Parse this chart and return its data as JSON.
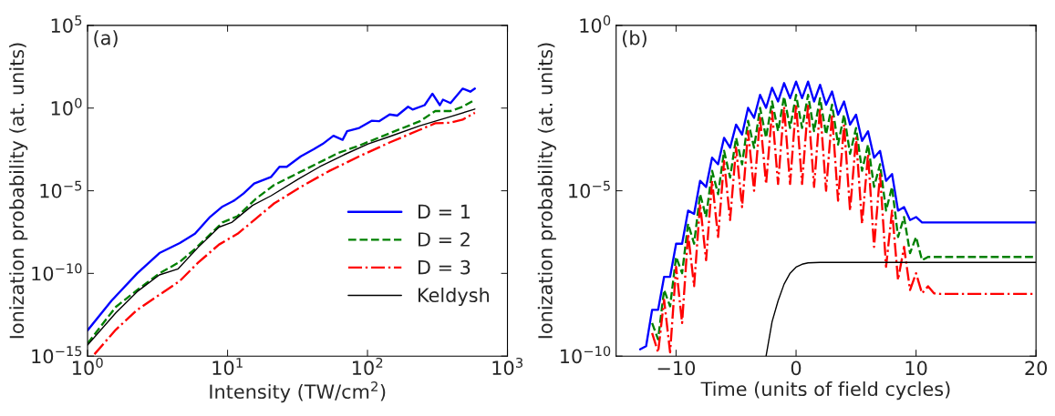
{
  "chart_data": [
    {
      "type": "line",
      "xlabel": "Intensity (TW/cm$^{2}$)",
      "ylabel": "Ionization probability (at. units)",
      "annotations": [
        "(a)"
      ],
      "log": "xy",
      "legend": "lower right",
      "grid": false,
      "xlim": [
        1,
        1000
      ],
      "xticks": [
        {
          "value": 1,
          "label": "10$^{0}$"
        },
        {
          "value": 10,
          "label": "10$^{1}$"
        },
        {
          "value": 100,
          "label": "10$^{2}$"
        },
        {
          "value": 1000,
          "label": "10$^{3}$"
        }
      ],
      "ylim": [
        1e-15,
        100000
      ],
      "yticks": [
        {
          "value": 1e-15,
          "label": "10$^{−15}$"
        },
        {
          "value": 1e-10,
          "label": "10$^{−10}$"
        },
        {
          "value": 1e-05,
          "label": "10$^{−5}$"
        },
        {
          "value": 1,
          "label": "10$^{0}$"
        },
        {
          "value": 100000,
          "label": "10$^{5}$"
        }
      ],
      "series": [
        {
          "name": "D = 1",
          "color": "#0000ff",
          "line_style": "solid",
          "x": [
            1,
            1.48,
            2.26,
            3.26,
            4.56,
            5.85,
            7.5,
            9.2,
            11.2,
            13.0,
            15.5,
            20.5,
            23.5,
            26.5,
            33.4,
            41.2,
            47.9,
            57.1,
            66.4,
            71.5,
            87.3,
            107,
            121,
            144,
            163,
            195,
            210,
            256,
            291,
            329,
            346,
            392,
            479,
            543,
            585
          ],
          "values": [
            3.6e-14,
            2.2e-12,
            1e-10,
            1.7e-09,
            6.9e-09,
            2.5e-08,
            2.6e-07,
            1.1e-06,
            2.6e-06,
            6.8e-06,
            2.7e-05,
            6.9e-05,
            0.00028,
            0.00028,
            0.0012,
            0.0032,
            0.0068,
            0.021,
            0.012,
            0.04,
            0.063,
            0.17,
            0.16,
            0.41,
            0.35,
            1.2,
            0.81,
            1.5,
            7.4,
            1.5,
            3.2,
            2.0,
            15,
            9.8,
            15
          ]
        },
        {
          "name": "D = 2",
          "color": "#008000",
          "line_style": "dashed",
          "x": [
            1,
            1.59,
            2.26,
            3.26,
            4.56,
            5.85,
            9.2,
            11.8,
            15.9,
            21.5,
            32.1,
            47.9,
            61.7,
            87.3,
            144,
            237,
            305,
            392,
            479,
            585
          ],
          "values": [
            5.8e-15,
            9.3e-13,
            9.8e-12,
            1e-10,
            5e-10,
            3e-09,
            1.2e-07,
            2.9e-07,
            3.2e-06,
            2.2e-05,
            0.00012,
            0.00065,
            0.0019,
            0.0054,
            0.03,
            0.16,
            0.66,
            0.66,
            1.2,
            3.2
          ]
        },
        {
          "name": "D = 3",
          "color": "#ff0000",
          "line_style": "dashdot",
          "x": [
            1.12,
            1.59,
            2.26,
            3.26,
            4.56,
            6.15,
            8.7,
            11.8,
            15.9,
            21.5,
            32.1,
            52.8,
            87.3,
            144,
            237,
            305,
            392,
            479,
            585
          ],
          "values": [
            1.3e-15,
            3.9e-14,
            6.2e-13,
            5.1e-12,
            3.5e-11,
            4.4e-10,
            5.6e-09,
            2.5e-08,
            2e-07,
            1.7e-06,
            1.4e-05,
            0.00015,
            0.0012,
            0.0083,
            0.049,
            0.12,
            0.13,
            0.2,
            0.52
          ]
        },
        {
          "name": "Keldysh",
          "color": "#000000",
          "line_style": "solid",
          "x": [
            1,
            1.59,
            2.26,
            3.26,
            4.44,
            6.15,
            8.7,
            10.7,
            15.1,
            20.5,
            32.1,
            45.5,
            68.0,
            101,
            144,
            237,
            392,
            585
          ],
          "values": [
            4.7e-15,
            4.1e-13,
            7.9e-12,
            8.1e-11,
            1.9e-10,
            3.7e-09,
            6.3e-08,
            1.2e-07,
            1.3e-06,
            5e-06,
            5.1e-05,
            0.00028,
            0.0015,
            0.0068,
            0.019,
            0.085,
            0.3,
            0.87
          ]
        }
      ]
    },
    {
      "type": "line",
      "xlabel": "Time (units of field cycles)",
      "ylabel": "Ionization probability (at. units)",
      "annotations": [
        "(b)"
      ],
      "log": "y",
      "grid": false,
      "xlim": [
        -15,
        20
      ],
      "xticks": [
        {
          "value": -10,
          "label": "−10"
        },
        0,
        10,
        20
      ],
      "ylim": [
        1e-10,
        1
      ],
      "yticks": [
        {
          "value": 1e-10,
          "label": "10$^{−10}$"
        },
        {
          "value": 1e-05,
          "label": "10$^{−5}$"
        },
        {
          "value": 1,
          "label": "10$^{0}$"
        }
      ],
      "series": [
        {
          "color": "#0000ff",
          "line_style": "solid",
          "x": [
            -13,
            -12.5,
            -12,
            -11.5,
            -11,
            -10.5,
            -10,
            -9.5,
            -9,
            -8.5,
            -8,
            -7.5,
            -7,
            -6.5,
            -6,
            -5.5,
            -5,
            -4.5,
            -4,
            -3.5,
            -3,
            -2.5,
            -2,
            -1.5,
            -1,
            -0.5,
            0,
            0.5,
            1,
            1.5,
            2,
            2.5,
            3,
            3.5,
            4,
            4.5,
            5,
            5.5,
            6,
            6.5,
            7,
            7.5,
            8,
            8.5,
            9,
            9.5,
            10,
            10.5,
            11,
            20
          ],
          "values": [
            1.6e-10,
            2e-10,
            2.5e-09,
            2.5e-09,
            2.5e-08,
            2.5e-08,
            2.5e-07,
            2.5e-07,
            2.5e-06,
            2e-06,
            2e-05,
            1.3e-05,
            0.0001,
            6.3e-05,
            0.0004,
            0.0002,
            0.001,
            0.0005,
            0.0032,
            0.0016,
            0.0079,
            0.0032,
            0.013,
            0.005,
            0.018,
            0.0063,
            0.02,
            0.0063,
            0.02,
            0.005,
            0.016,
            0.004,
            0.01,
            0.002,
            0.005,
            0.001,
            0.002,
            0.00032,
            0.00063,
            0.0001,
            0.00016,
            2e-05,
            3.2e-05,
            2.5e-06,
            3.2e-06,
            1.3e-06,
            1.6e-06,
            1.1e-06,
            1.1e-06,
            1.1e-06
          ]
        },
        {
          "color": "#008000",
          "line_style": "dashed",
          "x": [
            -12,
            -11.5,
            -11,
            -10.5,
            -10,
            -9.5,
            -9,
            -8.5,
            -8,
            -7.5,
            -7,
            -6.5,
            -6,
            -5.5,
            -5,
            -4.5,
            -4,
            -3.5,
            -3,
            -2.5,
            -2,
            -1.5,
            -1,
            -0.5,
            0,
            0.5,
            1,
            1.5,
            2,
            2.5,
            3,
            3.5,
            4,
            4.5,
            5,
            5.5,
            6,
            6.5,
            7,
            7.5,
            8,
            8.5,
            9,
            9.5,
            10,
            10.5,
            11,
            20
          ],
          "values": [
            1e-09,
            3.2e-10,
            1e-08,
            3.2e-09,
            1e-07,
            3.2e-08,
            1e-06,
            2.5e-07,
            7.9e-06,
            1.6e-06,
            4e-05,
            7.9e-06,
            0.00016,
            2.5e-05,
            0.0004,
            6.3e-05,
            0.0013,
            0.0002,
            0.0032,
            0.0004,
            0.005,
            0.00063,
            0.007,
            0.00079,
            0.0079,
            0.00079,
            0.0079,
            0.00063,
            0.0063,
            0.0005,
            0.004,
            0.00025,
            0.002,
            0.00013,
            0.00079,
            4e-05,
            0.00025,
            1.3e-05,
            6.3e-05,
            2.5e-06,
            1.3e-05,
            4e-07,
            1.6e-06,
            1.3e-07,
            4e-07,
            7.9e-08,
            1e-07,
            1e-07
          ]
        },
        {
          "color": "#ff0000",
          "line_style": "dashdot",
          "x": [
            -12,
            -11.5,
            -11,
            -10.5,
            -10,
            -9.5,
            -9,
            -8.5,
            -8,
            -7.5,
            -7,
            -6.5,
            -6,
            -5.5,
            -5,
            -4.5,
            -4,
            -3.5,
            -3,
            -2.5,
            -2,
            -1.5,
            -1,
            -0.5,
            0,
            0.5,
            1,
            1.5,
            2,
            2.5,
            3,
            3.5,
            4,
            4.5,
            5,
            5.5,
            6,
            6.5,
            7,
            7.5,
            8,
            8.5,
            9,
            9.5,
            10,
            10.5,
            11,
            11.5,
            12,
            20
          ],
          "values": [
            5e-10,
            1.3e-10,
            5e-09,
            1.3e-10,
            5e-08,
            1e-09,
            5e-07,
            1.3e-08,
            4e-06,
            7.9e-08,
            2e-05,
            4e-07,
            7.9e-05,
            1.3e-06,
            0.0002,
            3.2e-06,
            0.00063,
            1e-05,
            0.0016,
            1.6e-05,
            0.0025,
            1.6e-05,
            0.0035,
            1.6e-05,
            0.004,
            1.6e-05,
            0.004,
            1.3e-05,
            0.0032,
            1e-05,
            0.002,
            5e-06,
            0.001,
            2.5e-06,
            0.0004,
            1e-06,
            0.00013,
            2e-07,
            3.2e-05,
            5e-08,
            2.5e-06,
            2e-08,
            2e-07,
            1e-08,
            3.2e-08,
            7.9e-09,
            1.3e-08,
            7.9e-09,
            7.6e-09,
            7.6e-09
          ]
        },
        {
          "color": "#000000",
          "line_style": "solid",
          "x": [
            -2.5,
            -2,
            -1.5,
            -1,
            -0.5,
            0,
            0.5,
            1,
            2,
            20
          ],
          "values": [
            1e-10,
            1.1e-09,
            4.7e-09,
            1.5e-08,
            3.2e-08,
            4.9e-08,
            6e-08,
            6.6e-08,
            6.8e-08,
            6.8e-08
          ]
        }
      ]
    }
  ]
}
